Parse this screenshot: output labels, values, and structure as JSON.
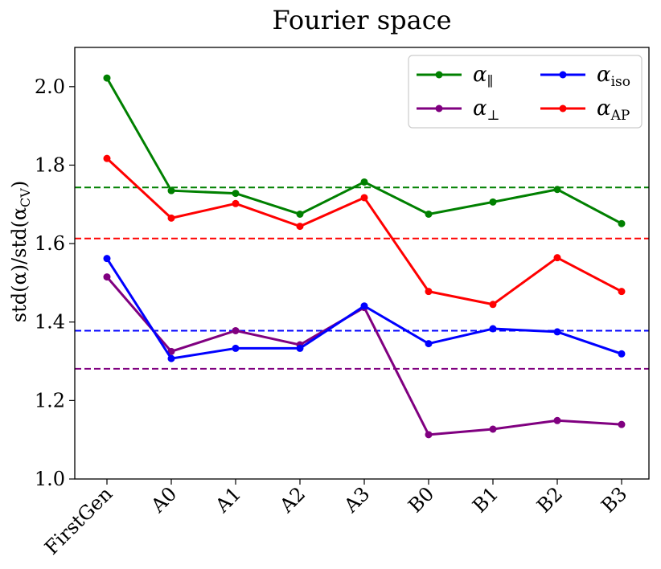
{
  "chart_data": {
    "type": "line",
    "title": "Fourier space",
    "ylabel": "std(α)/std(α_CV)",
    "ylabel_parts": {
      "pre": "std(α)/std(α",
      "sub": "CV",
      "post": ")"
    },
    "xlabel": "",
    "categories": [
      "FirstGen",
      "A0",
      "A1",
      "A2",
      "A3",
      "B0",
      "B1",
      "B2",
      "B3"
    ],
    "ylim": [
      1.0,
      2.1
    ],
    "yticks": [
      1.0,
      1.2,
      1.4,
      1.6,
      1.8,
      2.0
    ],
    "ytick_labels": [
      "1.0",
      "1.2",
      "1.4",
      "1.6",
      "1.8",
      "2.0"
    ],
    "grid": false,
    "legend_position": "top-right",
    "series": [
      {
        "name": "α_∥",
        "symbol": "α",
        "sub": "∥",
        "color": "#008000",
        "values": [
          2.022,
          1.735,
          1.728,
          1.675,
          1.757,
          1.675,
          1.706,
          1.738,
          1.651
        ],
        "reference": 1.743
      },
      {
        "name": "α_⊥",
        "symbol": "α",
        "sub": "⊥",
        "color": "#800080",
        "values": [
          1.515,
          1.325,
          1.378,
          1.342,
          1.437,
          1.113,
          1.127,
          1.149,
          1.139
        ],
        "reference": 1.281
      },
      {
        "name": "α_iso",
        "symbol": "α",
        "sub": "iso",
        "color": "#0000ff",
        "values": [
          1.562,
          1.307,
          1.333,
          1.333,
          1.441,
          1.345,
          1.383,
          1.375,
          1.319
        ],
        "reference": 1.378
      },
      {
        "name": "α_AP",
        "symbol": "α",
        "sub": "AP",
        "color": "#ff0000",
        "values": [
          1.817,
          1.665,
          1.702,
          1.644,
          1.717,
          1.478,
          1.445,
          1.564,
          1.478
        ],
        "reference": 1.613
      }
    ]
  }
}
